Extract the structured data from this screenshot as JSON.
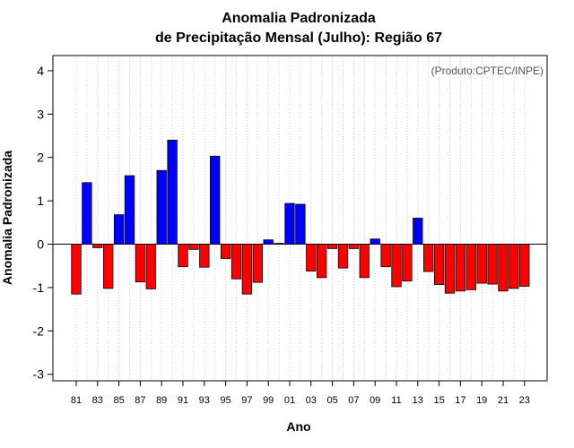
{
  "chart_data": {
    "type": "bar",
    "title_line1": "Anomalia Padronizada",
    "title_line2": "de Precipitação Mensal (Julho): Região 67",
    "xlabel": "Ano",
    "ylabel": "Anomalia Padronizada",
    "credit": "(Produto:CPTEC/INPE)",
    "ylim": [
      -3.15,
      4.35
    ],
    "yticks": [
      -3,
      -2,
      -1,
      0,
      1,
      2,
      3,
      4
    ],
    "ytick_labels": [
      "-3",
      "-2",
      "-1",
      "0",
      "1",
      "2",
      "3",
      "4"
    ],
    "categories": [
      "81",
      "82",
      "83",
      "84",
      "85",
      "86",
      "87",
      "88",
      "89",
      "90",
      "91",
      "92",
      "93",
      "94",
      "95",
      "96",
      "97",
      "98",
      "99",
      "00",
      "01",
      "02",
      "03",
      "04",
      "05",
      "06",
      "07",
      "08",
      "09",
      "10",
      "11",
      "12",
      "13",
      "14",
      "15",
      "16",
      "17",
      "18",
      "19",
      "20",
      "21",
      "22",
      "23"
    ],
    "xtick_labels": [
      "81",
      "83",
      "85",
      "87",
      "89",
      "91",
      "93",
      "95",
      "97",
      "99",
      "01",
      "03",
      "05",
      "07",
      "09",
      "11",
      "13",
      "15",
      "17",
      "19",
      "21",
      "23"
    ],
    "values": [
      -1.15,
      1.42,
      -0.08,
      -1.02,
      0.68,
      1.58,
      -0.87,
      -1.03,
      1.7,
      2.4,
      -0.52,
      -0.12,
      -0.53,
      2.03,
      -0.33,
      -0.8,
      -1.15,
      -0.88,
      0.1,
      0.02,
      0.94,
      0.92,
      -0.62,
      -0.77,
      -0.1,
      -0.55,
      -0.1,
      -0.77,
      0.12,
      -0.52,
      -0.98,
      -0.85,
      0.6,
      -0.63,
      -0.93,
      -1.13,
      -1.08,
      -1.05,
      -0.9,
      -0.92,
      -1.08,
      -1.02,
      -0.97
    ],
    "colors": {
      "positive": "#0000ff",
      "negative": "#ff0000",
      "outline": "#000000",
      "grid": "#cccccc",
      "zero_line": "#000000"
    },
    "grid": true
  }
}
